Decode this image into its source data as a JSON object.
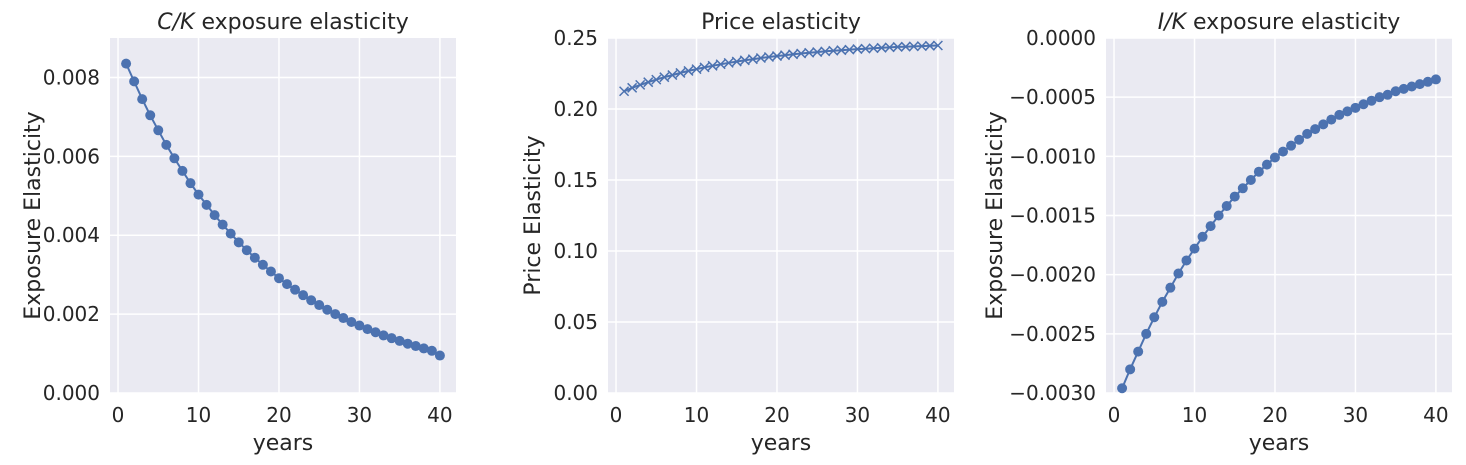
{
  "chart_data": [
    {
      "type": "line",
      "title_italic": "C/K",
      "title_rest": " exposure elasticity",
      "xlabel": "years",
      "ylabel": "Exposure Elasticity",
      "xlim": [
        -1,
        42
      ],
      "ylim": [
        0,
        0.009
      ],
      "xticks": [
        0,
        10,
        20,
        30,
        40
      ],
      "xtick_labels": [
        "0",
        "10",
        "20",
        "30",
        "40"
      ],
      "yticks": [
        0,
        0.002,
        0.004,
        0.006,
        0.008
      ],
      "ytick_labels": [
        "0.000",
        "0.002",
        "0.004",
        "0.006",
        "0.008"
      ],
      "grid": true,
      "marker": "circle",
      "color": "#4c72b0",
      "x": [
        1,
        2,
        3,
        4,
        5,
        6,
        7,
        8,
        9,
        10,
        11,
        12,
        13,
        14,
        15,
        16,
        17,
        18,
        19,
        20,
        21,
        22,
        23,
        24,
        25,
        26,
        27,
        28,
        29,
        30,
        31,
        32,
        33,
        34,
        35,
        36,
        37,
        38,
        39,
        40
      ],
      "y": [
        0.00835,
        0.0079,
        0.00745,
        0.00704,
        0.00666,
        0.00629,
        0.00595,
        0.00563,
        0.00532,
        0.00503,
        0.00477,
        0.00451,
        0.00427,
        0.00404,
        0.00382,
        0.00362,
        0.00343,
        0.00325,
        0.00308,
        0.00291,
        0.00276,
        0.00262,
        0.00248,
        0.00235,
        0.00223,
        0.00211,
        0.002,
        0.0019,
        0.0018,
        0.00171,
        0.00162,
        0.00154,
        0.00146,
        0.00139,
        0.00132,
        0.00125,
        0.00119,
        0.00113,
        0.00107,
        0.00095
      ]
    },
    {
      "type": "line",
      "title_italic": "",
      "title_rest": "Price elasticity",
      "xlabel": "years",
      "ylabel": "Price Elasticity",
      "xlim": [
        -1,
        42
      ],
      "ylim": [
        0,
        0.25
      ],
      "xticks": [
        0,
        10,
        20,
        30,
        40
      ],
      "xtick_labels": [
        "0",
        "10",
        "20",
        "30",
        "40"
      ],
      "yticks": [
        0,
        0.05,
        0.1,
        0.15,
        0.2,
        0.25
      ],
      "ytick_labels": [
        "0.00",
        "0.05",
        "0.10",
        "0.15",
        "0.20",
        "0.25"
      ],
      "grid": true,
      "marker": "x",
      "color": "#4c72b0",
      "x": [
        1,
        2,
        3,
        4,
        5,
        6,
        7,
        8,
        9,
        10,
        11,
        12,
        13,
        14,
        15,
        16,
        17,
        18,
        19,
        20,
        21,
        22,
        23,
        24,
        25,
        26,
        27,
        28,
        29,
        30,
        31,
        32,
        33,
        34,
        35,
        36,
        37,
        38,
        39,
        40
      ],
      "y": [
        0.2125,
        0.2149,
        0.217,
        0.2189,
        0.2207,
        0.2224,
        0.2239,
        0.2254,
        0.2268,
        0.2281,
        0.2293,
        0.2304,
        0.2315,
        0.2325,
        0.2334,
        0.2343,
        0.2351,
        0.2359,
        0.2366,
        0.2373,
        0.2379,
        0.2385,
        0.2391,
        0.2396,
        0.2401,
        0.2406,
        0.241,
        0.2414,
        0.2418,
        0.2422,
        0.2425,
        0.2428,
        0.2431,
        0.2434,
        0.2437,
        0.2439,
        0.2441,
        0.2443,
        0.2445,
        0.2447
      ]
    },
    {
      "type": "line",
      "title_italic": "I/K",
      "title_rest": " exposure elasticity",
      "xlabel": "years",
      "ylabel": "Exposure Elasticity",
      "xlim": [
        -1,
        42
      ],
      "ylim": [
        -0.003,
        0.0
      ],
      "xticks": [
        0,
        10,
        20,
        30,
        40
      ],
      "xtick_labels": [
        "0",
        "10",
        "20",
        "30",
        "40"
      ],
      "yticks": [
        -0.003,
        -0.0025,
        -0.002,
        -0.0015,
        -0.001,
        -0.0005,
        0.0
      ],
      "ytick_labels": [
        "−0.0030",
        "−0.0025",
        "−0.0020",
        "−0.0015",
        "−0.0010",
        "−0.0005",
        "0.0000"
      ],
      "grid": true,
      "marker": "circle",
      "color": "#4c72b0",
      "x": [
        1,
        2,
        3,
        4,
        5,
        6,
        7,
        8,
        9,
        10,
        11,
        12,
        13,
        14,
        15,
        16,
        17,
        18,
        19,
        20,
        21,
        22,
        23,
        24,
        25,
        26,
        27,
        28,
        29,
        30,
        31,
        32,
        33,
        34,
        35,
        36,
        37,
        38,
        39,
        40
      ],
      "y": [
        -0.00296,
        -0.0028,
        -0.00265,
        -0.0025,
        -0.00236,
        -0.00223,
        -0.00211,
        -0.00199,
        -0.00188,
        -0.00178,
        -0.00168,
        -0.00159,
        -0.0015,
        -0.00142,
        -0.00134,
        -0.00127,
        -0.0012,
        -0.00113,
        -0.00107,
        -0.00101,
        -0.00096,
        -0.00091,
        -0.00086,
        -0.00081,
        -0.00077,
        -0.00073,
        -0.00069,
        -0.00065,
        -0.00062,
        -0.00059,
        -0.00056,
        -0.00053,
        -0.0005,
        -0.00048,
        -0.00045,
        -0.00043,
        -0.00041,
        -0.00039,
        -0.00037,
        -0.00035
      ]
    }
  ]
}
